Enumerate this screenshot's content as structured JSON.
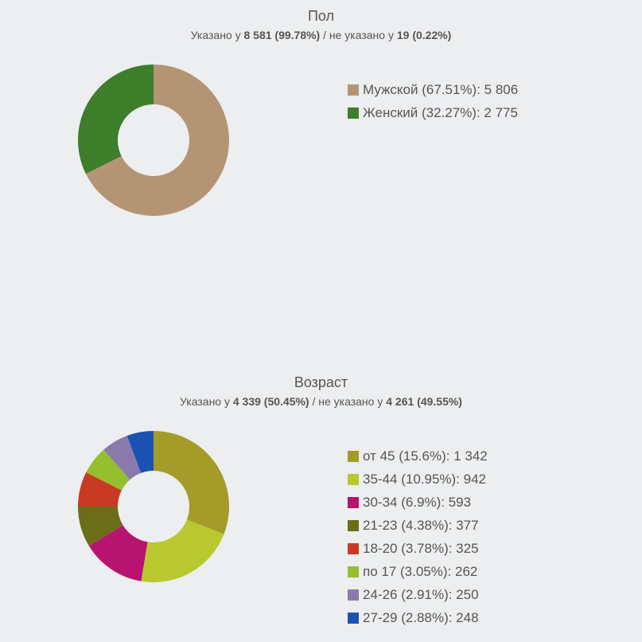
{
  "chart_data": [
    {
      "type": "pie",
      "title": "Пол",
      "subtitle": {
        "prefix": "Указано у ",
        "specified": "8 581 (99.78%)",
        "middle": " / не указано у ",
        "unspecified": "19 (0.22%)"
      },
      "series": [
        {
          "name": "Мужской",
          "percent": "67.51%",
          "value": 5806,
          "label": "Мужской (67.51%): 5 806",
          "color": "#b39574"
        },
        {
          "name": "Женский",
          "percent": "32.27%",
          "value": 2775,
          "label": "Женский (32.27%): 2 775",
          "color": "#3e7d2a"
        }
      ],
      "legend": "right"
    },
    {
      "type": "pie",
      "title": "Возраст",
      "subtitle": {
        "prefix": "Указано у ",
        "specified": "4 339 (50.45%)",
        "middle": " / не указано у ",
        "unspecified": "4 261 (49.55%)"
      },
      "series": [
        {
          "name": "от 45",
          "percent": "15.6%",
          "value": 1342,
          "label": "от 45 (15.6%): 1 342",
          "color": "#a49b29"
        },
        {
          "name": "35-44",
          "percent": "10.95%",
          "value": 942,
          "label": "35-44 (10.95%): 942",
          "color": "#b9c82f"
        },
        {
          "name": "30-34",
          "percent": "6.9%",
          "value": 593,
          "label": "30-34 (6.9%): 593",
          "color": "#b71470"
        },
        {
          "name": "21-23",
          "percent": "4.38%",
          "value": 377,
          "label": "21-23 (4.38%): 377",
          "color": "#6b6d18"
        },
        {
          "name": "18-20",
          "percent": "3.78%",
          "value": 325,
          "label": "18-20 (3.78%): 325",
          "color": "#c83a24"
        },
        {
          "name": "по 17",
          "percent": "3.05%",
          "value": 262,
          "label": "по 17 (3.05%): 262",
          "color": "#95bf2f"
        },
        {
          "name": "24-26",
          "percent": "2.91%",
          "value": 250,
          "label": "24-26 (2.91%): 250",
          "color": "#8a7aac"
        },
        {
          "name": "27-29",
          "percent": "2.88%",
          "value": 248,
          "label": "27-29 (2.88%): 248",
          "color": "#1c51b4"
        }
      ],
      "legend": "right"
    }
  ]
}
